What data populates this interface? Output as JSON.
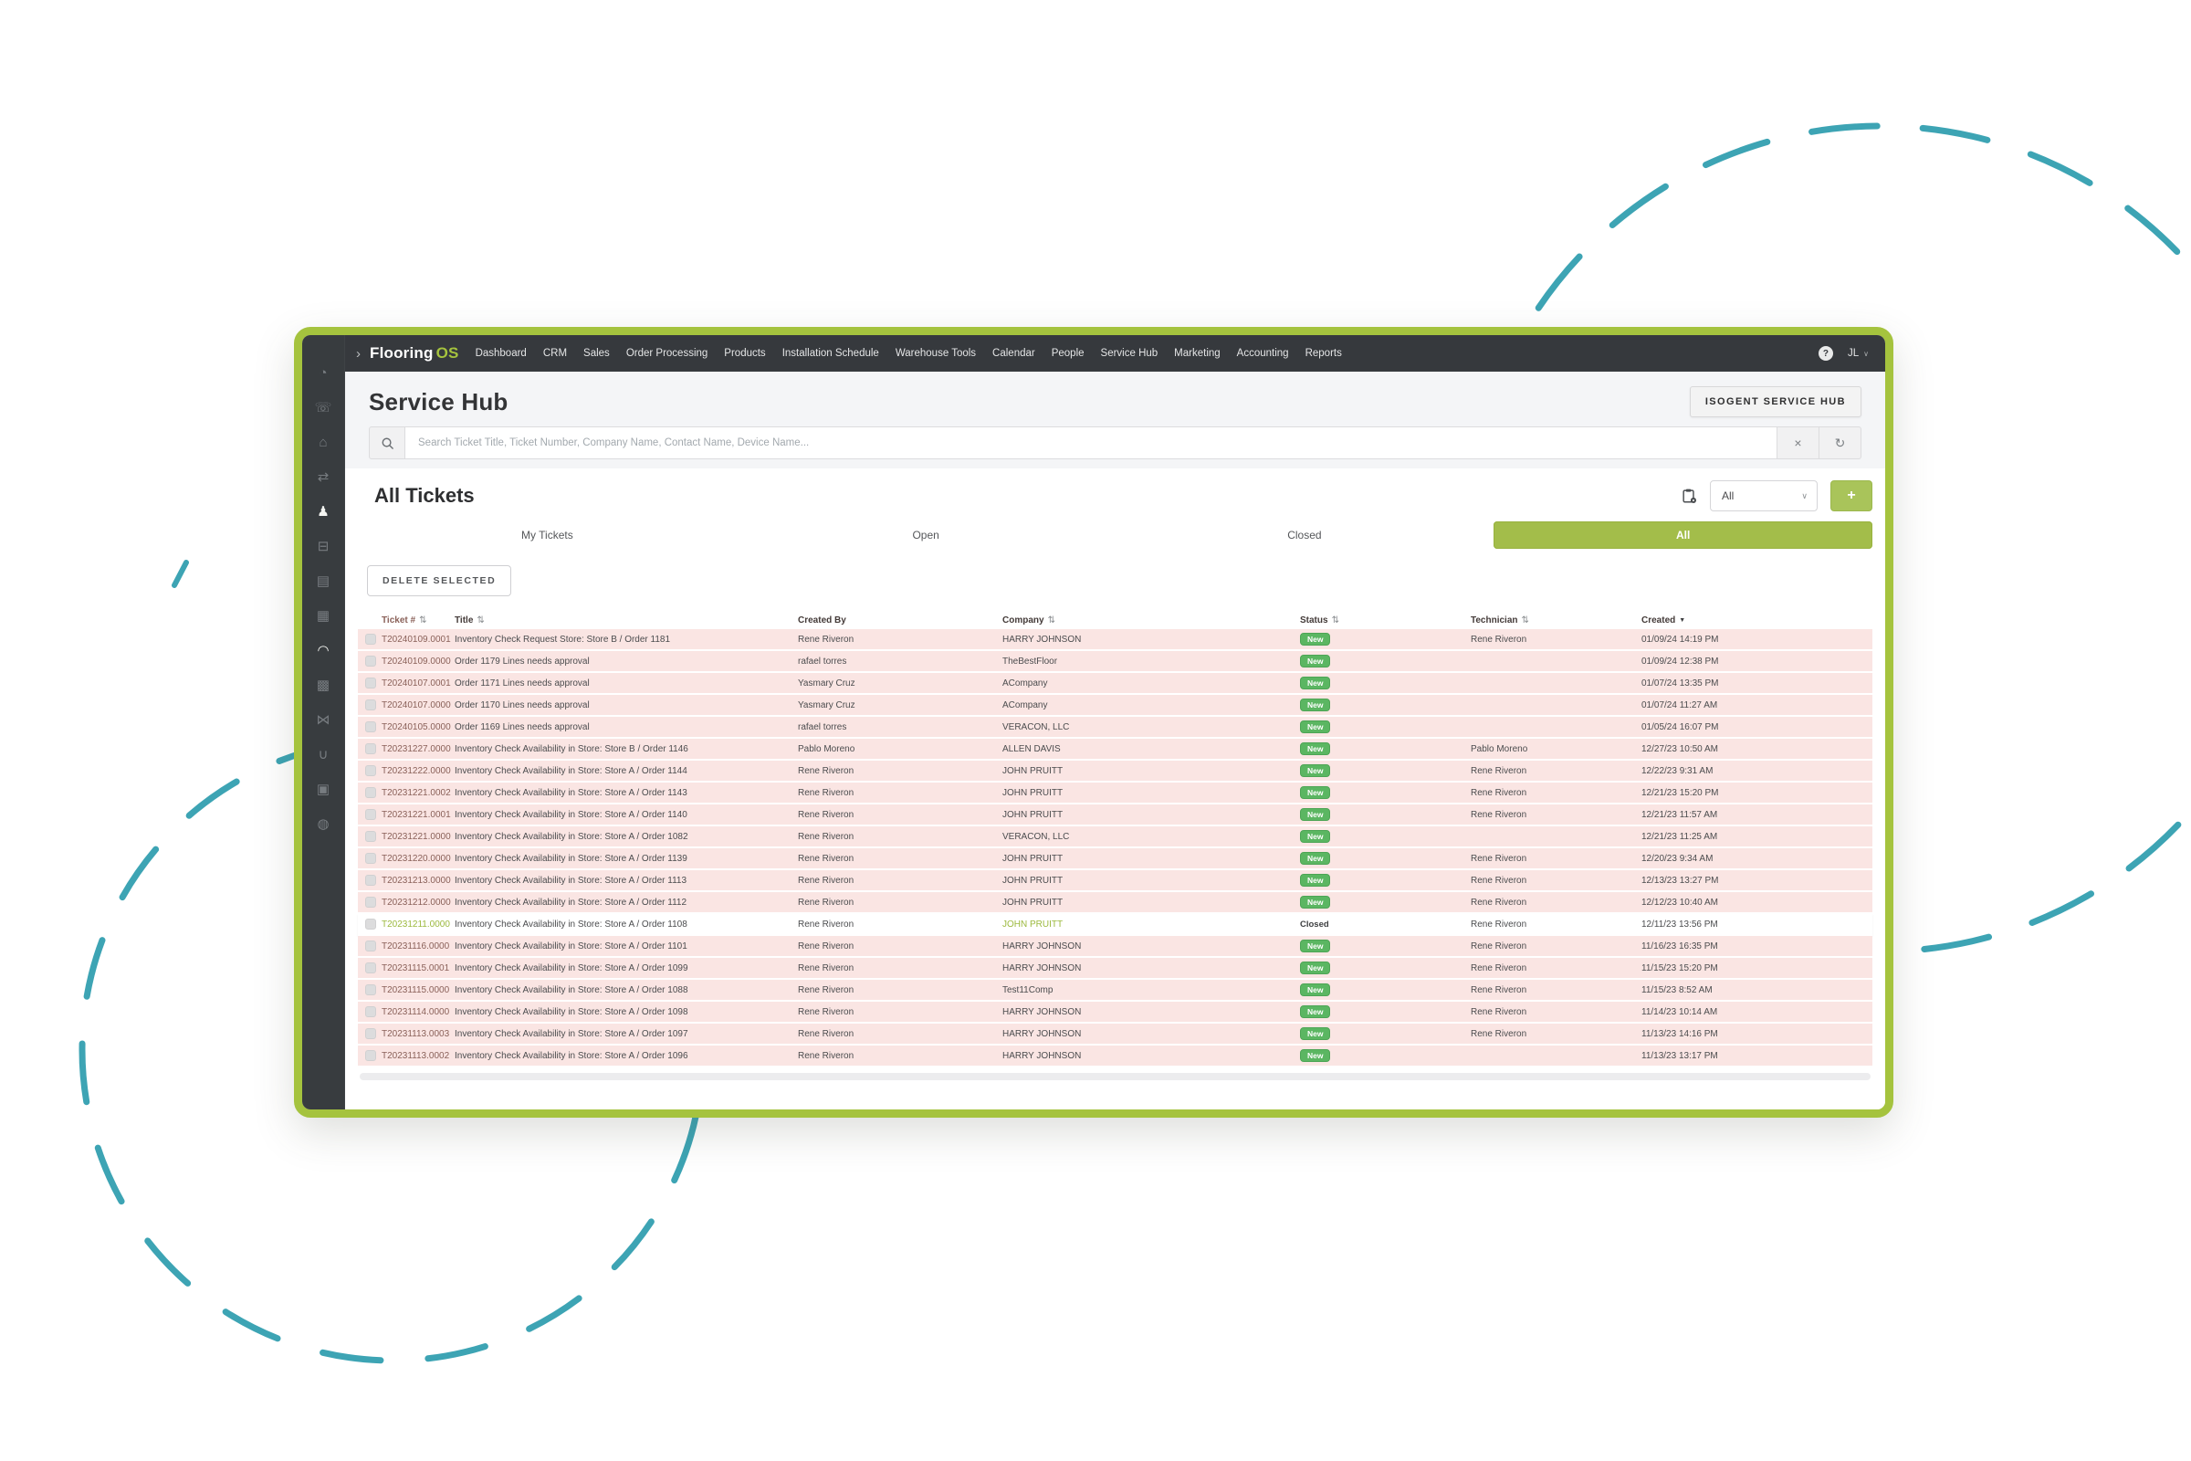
{
  "nav": {
    "chevron": "›",
    "logo_prefix": "Flooring",
    "logo_suffix": "OS",
    "items": [
      "Dashboard",
      "CRM",
      "Sales",
      "Order Processing",
      "Products",
      "Installation Schedule",
      "Warehouse Tools",
      "Calendar",
      "People",
      "Service Hub",
      "Marketing",
      "Accounting",
      "Reports"
    ],
    "help_icon": "?",
    "user_initials": "JL",
    "user_caret": "∨"
  },
  "sidebar": {
    "icons": [
      {
        "name": "dashboard-icon",
        "glyph": "◔",
        "active": false
      },
      {
        "name": "phone-icon",
        "glyph": "☏",
        "active": false
      },
      {
        "name": "store-icon",
        "glyph": "⌂",
        "active": false
      },
      {
        "name": "transfer-icon",
        "glyph": "⇄",
        "active": false
      },
      {
        "name": "people-icon",
        "glyph": "♟",
        "active": true
      },
      {
        "name": "truck-icon",
        "glyph": "⊟",
        "active": false
      },
      {
        "name": "chart-icon",
        "glyph": "▤",
        "active": false
      },
      {
        "name": "calendar-icon",
        "glyph": "▦",
        "active": false
      },
      {
        "name": "cap-icon",
        "glyph": "◠",
        "active": true
      },
      {
        "name": "grid-icon",
        "glyph": "▩",
        "active": false
      },
      {
        "name": "tools-icon",
        "glyph": "⋈",
        "active": false
      },
      {
        "name": "handshake-icon",
        "glyph": "∪",
        "active": false
      },
      {
        "name": "image-icon",
        "glyph": "▣",
        "active": false
      },
      {
        "name": "globe-icon",
        "glyph": "◍",
        "active": false
      }
    ]
  },
  "page": {
    "title": "Service Hub",
    "isogent_button": "ISOGENT SERVICE HUB"
  },
  "search": {
    "placeholder": "Search Ticket Title, Ticket Number, Company Name, Contact Name, Device Name...",
    "clear_icon": "×",
    "refresh_icon": "↻"
  },
  "tickets": {
    "heading": "All Tickets",
    "filter_value": "All",
    "filter_caret": "∨",
    "add_button": "+",
    "tabs": [
      {
        "label": "My Tickets",
        "active": false
      },
      {
        "label": "Open",
        "active": false
      },
      {
        "label": "Closed",
        "active": false
      },
      {
        "label": "All",
        "active": true
      }
    ],
    "delete_button": "DELETE SELECTED",
    "columns": [
      {
        "label": "Ticket #",
        "sort": "both"
      },
      {
        "label": "Title",
        "sort": "both"
      },
      {
        "label": "Created By",
        "sort": "none"
      },
      {
        "label": "Company",
        "sort": "both"
      },
      {
        "label": "Status",
        "sort": "both"
      },
      {
        "label": "Technician",
        "sort": "both"
      },
      {
        "label": "Created",
        "sort": "desc"
      }
    ],
    "rows": [
      {
        "ticket": "T20240109.0001",
        "title": "Inventory Check Request Store: Store B / Order 1181",
        "created_by": "Rene Riveron",
        "company": "HARRY JOHNSON",
        "status": "New",
        "technician": "Rene Riveron",
        "created": "01/09/24 14:19 PM",
        "closed": false
      },
      {
        "ticket": "T20240109.0000",
        "title": "Order 1179 Lines needs approval",
        "created_by": "rafael torres",
        "company": "TheBestFloor",
        "status": "New",
        "technician": "",
        "created": "01/09/24 12:38 PM",
        "closed": false
      },
      {
        "ticket": "T20240107.0001",
        "title": "Order 1171 Lines needs approval",
        "created_by": "Yasmary Cruz",
        "company": "ACompany",
        "status": "New",
        "technician": "",
        "created": "01/07/24 13:35 PM",
        "closed": false
      },
      {
        "ticket": "T20240107.0000",
        "title": "Order 1170 Lines needs approval",
        "created_by": "Yasmary Cruz",
        "company": "ACompany",
        "status": "New",
        "technician": "",
        "created": "01/07/24 11:27 AM",
        "closed": false
      },
      {
        "ticket": "T20240105.0000",
        "title": "Order 1169 Lines needs approval",
        "created_by": "rafael torres",
        "company": "VERACON, LLC",
        "status": "New",
        "technician": "",
        "created": "01/05/24 16:07 PM",
        "closed": false
      },
      {
        "ticket": "T20231227.0000",
        "title": "Inventory Check Availability in Store: Store B / Order 1146",
        "created_by": "Pablo Moreno",
        "company": "ALLEN DAVIS",
        "status": "New",
        "technician": "Pablo Moreno",
        "created": "12/27/23 10:50 AM",
        "closed": false
      },
      {
        "ticket": "T20231222.0000",
        "title": "Inventory Check Availability in Store: Store A / Order 1144",
        "created_by": "Rene Riveron",
        "company": "JOHN PRUITT",
        "status": "New",
        "technician": "Rene Riveron",
        "created": "12/22/23 9:31 AM",
        "closed": false
      },
      {
        "ticket": "T20231221.0002",
        "title": "Inventory Check Availability in Store: Store A / Order 1143",
        "created_by": "Rene Riveron",
        "company": "JOHN PRUITT",
        "status": "New",
        "technician": "Rene Riveron",
        "created": "12/21/23 15:20 PM",
        "closed": false
      },
      {
        "ticket": "T20231221.0001",
        "title": "Inventory Check Availability in Store: Store A / Order 1140",
        "created_by": "Rene Riveron",
        "company": "JOHN PRUITT",
        "status": "New",
        "technician": "Rene Riveron",
        "created": "12/21/23 11:57 AM",
        "closed": false
      },
      {
        "ticket": "T20231221.0000",
        "title": "Inventory Check Availability in Store: Store A / Order 1082",
        "created_by": "Rene Riveron",
        "company": "VERACON, LLC",
        "status": "New",
        "technician": "",
        "created": "12/21/23 11:25 AM",
        "closed": false
      },
      {
        "ticket": "T20231220.0000",
        "title": "Inventory Check Availability in Store: Store A / Order 1139",
        "created_by": "Rene Riveron",
        "company": "JOHN PRUITT",
        "status": "New",
        "technician": "Rene Riveron",
        "created": "12/20/23 9:34 AM",
        "closed": false
      },
      {
        "ticket": "T20231213.0000",
        "title": "Inventory Check Availability in Store: Store A / Order 1113",
        "created_by": "Rene Riveron",
        "company": "JOHN PRUITT",
        "status": "New",
        "technician": "Rene Riveron",
        "created": "12/13/23 13:27 PM",
        "closed": false
      },
      {
        "ticket": "T20231212.0000",
        "title": "Inventory Check Availability in Store: Store A / Order 1112",
        "created_by": "Rene Riveron",
        "company": "JOHN PRUITT",
        "status": "New",
        "technician": "Rene Riveron",
        "created": "12/12/23 10:40 AM",
        "closed": false
      },
      {
        "ticket": "T20231211.0000",
        "title": "Inventory Check Availability in Store: Store A / Order 1108",
        "created_by": "Rene Riveron",
        "company": "JOHN PRUITT",
        "status": "Closed",
        "technician": "Rene Riveron",
        "created": "12/11/23 13:56 PM",
        "closed": true
      },
      {
        "ticket": "T20231116.0000",
        "title": "Inventory Check Availability in Store: Store A / Order 1101",
        "created_by": "Rene Riveron",
        "company": "HARRY JOHNSON",
        "status": "New",
        "technician": "Rene Riveron",
        "created": "11/16/23 16:35 PM",
        "closed": false
      },
      {
        "ticket": "T20231115.0001",
        "title": "Inventory Check Availability in Store: Store A / Order 1099",
        "created_by": "Rene Riveron",
        "company": "HARRY JOHNSON",
        "status": "New",
        "technician": "Rene Riveron",
        "created": "11/15/23 15:20 PM",
        "closed": false
      },
      {
        "ticket": "T20231115.0000",
        "title": "Inventory Check Availability in Store: Store A / Order 1088",
        "created_by": "Rene Riveron",
        "company": "Test11Comp",
        "status": "New",
        "technician": "Rene Riveron",
        "created": "11/15/23 8:52 AM",
        "closed": false
      },
      {
        "ticket": "T20231114.0000",
        "title": "Inventory Check Availability in Store: Store A / Order 1098",
        "created_by": "Rene Riveron",
        "company": "HARRY JOHNSON",
        "status": "New",
        "technician": "Rene Riveron",
        "created": "11/14/23 10:14 AM",
        "closed": false
      },
      {
        "ticket": "T20231113.0003",
        "title": "Inventory Check Availability in Store: Store A / Order 1097",
        "created_by": "Rene Riveron",
        "company": "HARRY JOHNSON",
        "status": "New",
        "technician": "Rene Riveron",
        "created": "11/13/23 14:16 PM",
        "closed": false
      },
      {
        "ticket": "T20231113.0002",
        "title": "Inventory Check Availability in Store: Store A / Order 1096",
        "created_by": "Rene Riveron",
        "company": "HARRY JOHNSON",
        "status": "New",
        "technician": "",
        "created": "11/13/23 13:17 PM",
        "closed": false
      }
    ]
  },
  "colors": {
    "accent_green": "#a5c33e",
    "tab_active_green": "#a3bd4a",
    "badge_green": "#5bb662",
    "row_pink": "#fae5e3",
    "nav_dark": "#36393d",
    "teal_dash": "#3da4b4"
  }
}
